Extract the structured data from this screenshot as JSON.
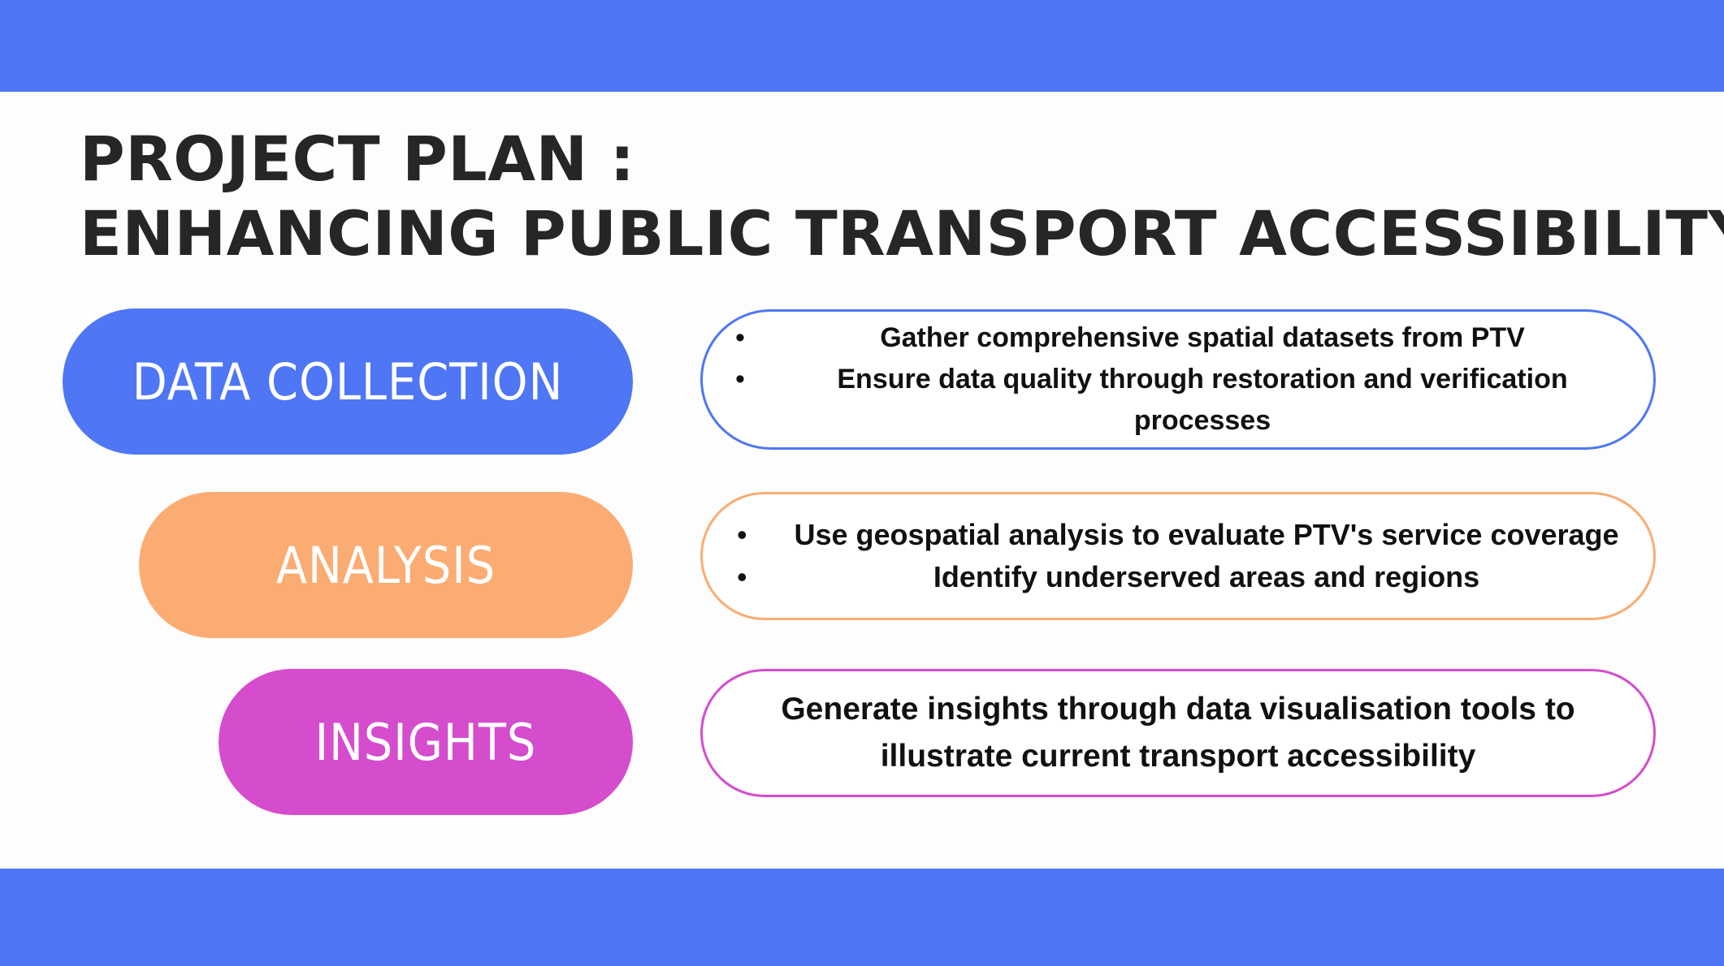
{
  "colors": {
    "band": "#4e76f5",
    "data_collection": "#4e76f5",
    "analysis": "#fbac72",
    "insights": "#d54ccd",
    "title_text": "#262626"
  },
  "title": {
    "line1": "PROJECT PLAN :",
    "line2": "ENHANCING PUBLIC TRANSPORT ACCESSIBILITY"
  },
  "stages": [
    {
      "label": "DATA COLLECTION",
      "bullets": [
        "Gather comprehensive spatial datasets from PTV",
        "Ensure data quality through restoration and verification processes"
      ]
    },
    {
      "label": "ANALYSIS",
      "bullets": [
        "Use geospatial analysis to evaluate PTV's service coverage",
        "Identify underserved areas and regions"
      ]
    },
    {
      "label": "INSIGHTS",
      "text": "Generate insights through data visualisation tools to illustrate current transport accessibility"
    }
  ],
  "bullet_glyph": "•"
}
